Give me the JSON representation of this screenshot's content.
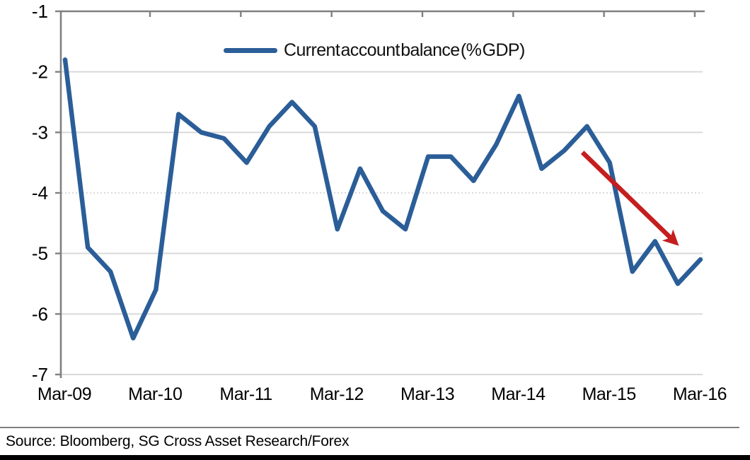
{
  "legend": {
    "label": "Current account balance (% GDP)"
  },
  "source": {
    "text": "Source: Bloomberg, SG Cross Asset Research/Forex"
  },
  "chart_data": {
    "type": "line",
    "title": "",
    "xlabel": "",
    "ylabel": "",
    "ylim": [
      -7,
      -1
    ],
    "categories": [
      "Mar-09",
      "Jun-09",
      "Sep-09",
      "Dec-09",
      "Mar-10",
      "Jun-10",
      "Sep-10",
      "Dec-10",
      "Mar-11",
      "Jun-11",
      "Sep-11",
      "Dec-11",
      "Mar-12",
      "Jun-12",
      "Sep-12",
      "Dec-12",
      "Mar-13",
      "Jun-13",
      "Sep-13",
      "Dec-13",
      "Mar-14",
      "Jun-14",
      "Sep-14",
      "Dec-14",
      "Mar-15",
      "Jun-15",
      "Sep-15",
      "Dec-15",
      "Mar-16"
    ],
    "series": [
      {
        "name": "Current account balance (% GDP)",
        "color": "#2B5E98",
        "values": [
          -1.8,
          -4.9,
          -5.3,
          -6.4,
          -5.6,
          -2.7,
          -3.0,
          -3.1,
          -3.5,
          -2.9,
          -2.5,
          -2.9,
          -4.6,
          -3.6,
          -4.3,
          -4.6,
          -3.4,
          -3.4,
          -3.8,
          -3.2,
          -2.4,
          -3.6,
          -3.3,
          -2.9,
          -3.5,
          -5.3,
          -4.8,
          -5.5,
          -5.1
        ]
      }
    ],
    "x_tick_labels": [
      "Mar-09",
      "Mar-10",
      "Mar-11",
      "Mar-12",
      "Mar-13",
      "Mar-14",
      "Mar-15",
      "Mar-16"
    ],
    "x_tick_indices": [
      0,
      4,
      8,
      12,
      16,
      20,
      24,
      28
    ],
    "y_tick_labels": [
      "-1",
      "-2",
      "-3",
      "-4",
      "-5",
      "-6",
      "-7"
    ],
    "y_tick_values": [
      -1,
      -2,
      -3,
      -4,
      -5,
      -6,
      -7
    ],
    "grid": {
      "on": true,
      "color": "#D9D9D9",
      "dotted_value": -4
    },
    "axis_color": "#808080",
    "legend_position": "top-center",
    "annotation": {
      "type": "arrow",
      "description": "red arrow pointing down-right over the 2015-2016 decline",
      "color": "#C41E1E",
      "from_index": 22.8,
      "from_value": -3.33,
      "to_index": 26.9,
      "to_value": -4.82
    }
  }
}
